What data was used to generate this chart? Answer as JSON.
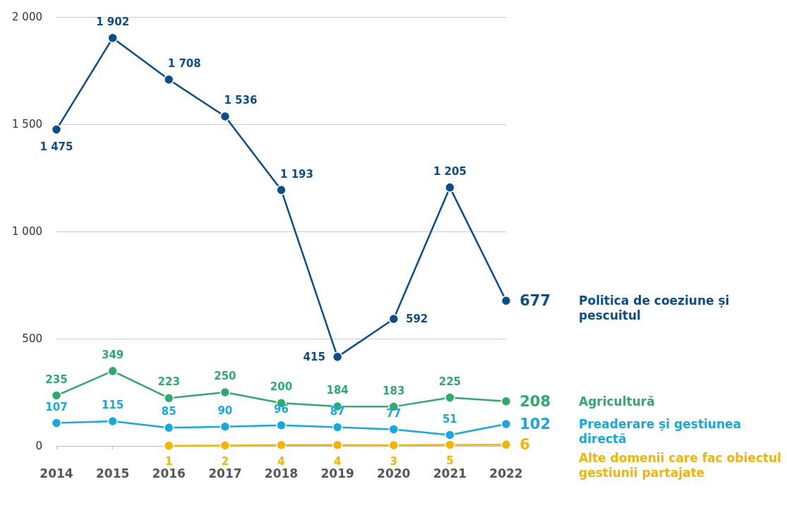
{
  "chart_data": {
    "type": "line",
    "categories": [
      "2014",
      "2015",
      "2016",
      "2017",
      "2018",
      "2019",
      "2020",
      "2021",
      "2022"
    ],
    "ylim": [
      0,
      2000
    ],
    "yticks": [
      0,
      500,
      {
        "value": 1000,
        "label": "1 000"
      },
      {
        "value": 1500,
        "label": "1 500"
      },
      {
        "value": 2000,
        "label": "2 000"
      }
    ],
    "grid": "y",
    "marker": "circle",
    "line_style": "solid",
    "legend": false,
    "series": [
      {
        "name": "Politica de coeziune și pescuitul",
        "color": "#0a4d8c",
        "values": [
          1475,
          1902,
          1708,
          1536,
          1193,
          415,
          592,
          1205,
          677
        ],
        "value_labels": [
          "1 475",
          "1 902",
          "1 708",
          "1 536",
          "1 193",
          "415",
          "592",
          "1 205",
          "677"
        ]
      },
      {
        "name": "Agricultură",
        "color": "#2eaa6a",
        "values": [
          235,
          349,
          223,
          250,
          200,
          184,
          183,
          225,
          208
        ],
        "value_labels": [
          "235",
          "349",
          "223",
          "250",
          "200",
          "184",
          "183",
          "225",
          "208"
        ]
      },
      {
        "name": "Preaderare și gestiunea directă",
        "color": "#14a9df",
        "values": [
          107,
          115,
          85,
          90,
          96,
          87,
          77,
          51,
          102
        ],
        "value_labels": [
          "107",
          "115",
          "85",
          "90",
          "96",
          "87",
          "77",
          "51",
          "102"
        ]
      },
      {
        "name": "Alte domenii care fac obiectul gestiunii partajate",
        "color": "#f4b400",
        "values": [
          null,
          null,
          1,
          2,
          4,
          4,
          3,
          5,
          6
        ],
        "value_labels": [
          null,
          null,
          "1",
          "2",
          "4",
          "4",
          "3",
          "5",
          "6"
        ]
      }
    ]
  }
}
